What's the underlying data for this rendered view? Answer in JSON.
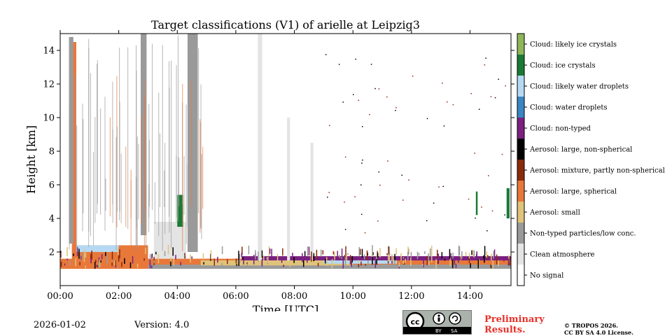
{
  "chart_data": {
    "type": "heatmap",
    "title": "Target classifications (V1) of arielle at Leipzig3",
    "xlabel": "Time [UTC]",
    "ylabel": "Height [km]",
    "xlim_hours": [
      0,
      15.4
    ],
    "ylim_km": [
      0,
      15
    ],
    "x_ticks": [
      {
        "value": 0,
        "label": "00:00"
      },
      {
        "value": 2,
        "label": "02:00"
      },
      {
        "value": 4,
        "label": "04:00"
      },
      {
        "value": 6,
        "label": "06:00"
      },
      {
        "value": 8,
        "label": "08:00"
      },
      {
        "value": 10,
        "label": "10:00"
      },
      {
        "value": 12,
        "label": "12:00"
      },
      {
        "value": 14,
        "label": "14:00"
      }
    ],
    "y_ticks": [
      {
        "value": 2,
        "label": "2"
      },
      {
        "value": 4,
        "label": "4"
      },
      {
        "value": 6,
        "label": "6"
      },
      {
        "value": 8,
        "label": "8"
      },
      {
        "value": 10,
        "label": "10"
      },
      {
        "value": 12,
        "label": "12"
      },
      {
        "value": 14,
        "label": "14"
      }
    ],
    "legend": [
      {
        "label": "Cloud: likely ice crystals",
        "color": "#8fb65a"
      },
      {
        "label": "Cloud: ice crystals",
        "color": "#1a7a35"
      },
      {
        "label": "Cloud: likely water droplets",
        "color": "#b5d9f3"
      },
      {
        "label": "Cloud: water droplets",
        "color": "#3a86c2"
      },
      {
        "label": "Cloud: non-typed",
        "color": "#7a2080"
      },
      {
        "label": "Aerosol: large, non-spherical",
        "color": "#000000"
      },
      {
        "label": "Aerosol: mixture, partly non-spherical",
        "color": "#8b2a0a"
      },
      {
        "label": "Aerosol: large, spherical",
        "color": "#e8783a"
      },
      {
        "label": "Aerosol: small",
        "color": "#e0c37a"
      },
      {
        "label": "Non-typed particles/low conc.",
        "color": "#9a9a9a"
      },
      {
        "label": "Clean atmosphere",
        "color": "#e4e4e4"
      },
      {
        "label": "No signal",
        "color": "#ffffff"
      }
    ],
    "layers": [
      {
        "class": "Aerosol: large, spherical",
        "x_start": 0.0,
        "x_end": 15.4,
        "y_bottom": 1.0,
        "y_top": 1.6
      },
      {
        "class": "Non-typed particles/low conc.",
        "x_start": 1.2,
        "x_end": 15.4,
        "y_bottom": 1.0,
        "y_top": 1.25
      },
      {
        "class": "Aerosol: small",
        "x_start": 4.8,
        "x_end": 10.0,
        "y_bottom": 1.2,
        "y_top": 1.5
      },
      {
        "class": "Cloud: likely water droplets",
        "x_start": 9.0,
        "x_end": 11.5,
        "y_bottom": 1.3,
        "y_top": 1.5
      },
      {
        "class": "Cloud: non-typed",
        "x_start": 6.2,
        "x_end": 15.4,
        "y_bottom": 1.5,
        "y_top": 1.75
      },
      {
        "class": "Aerosol: large, spherical",
        "x_start": 0.4,
        "x_end": 3.0,
        "y_bottom": 1.0,
        "y_top": 2.4
      },
      {
        "class": "Cloud: likely water droplets",
        "x_start": 0.4,
        "x_end": 2.0,
        "y_bottom": 2.0,
        "y_top": 2.4
      },
      {
        "class": "Clean atmosphere",
        "x_start": 3.2,
        "x_end": 4.3,
        "y_bottom": 1.6,
        "y_top": 3.8
      },
      {
        "class": "Aerosol: large, spherical",
        "x_start": 0.4,
        "x_end": 0.55,
        "y_bottom": 2.0,
        "y_top": 14.5
      },
      {
        "class": "Non-typed particles/low conc.",
        "x_start": 0.3,
        "x_end": 0.45,
        "y_bottom": 2.5,
        "y_top": 14.8
      },
      {
        "class": "Non-typed particles/low conc.",
        "x_start": 4.35,
        "x_end": 4.7,
        "y_bottom": 2.0,
        "y_top": 15.0
      },
      {
        "class": "Non-typed particles/low conc.",
        "x_start": 2.75,
        "x_end": 2.95,
        "y_bottom": 3.0,
        "y_top": 15.0
      },
      {
        "class": "Clean atmosphere",
        "x_start": 6.75,
        "x_end": 6.9,
        "y_bottom": 1.5,
        "y_top": 15.0
      },
      {
        "class": "Clean atmosphere",
        "x_start": 7.75,
        "x_end": 7.85,
        "y_bottom": 1.5,
        "y_top": 10.0
      },
      {
        "class": "Clean atmosphere",
        "x_start": 8.55,
        "x_end": 8.65,
        "y_bottom": 1.5,
        "y_top": 8.5
      },
      {
        "class": "Cloud: ice crystals",
        "x_start": 4.0,
        "x_end": 4.2,
        "y_bottom": 3.5,
        "y_top": 5.4
      },
      {
        "class": "Cloud: ice crystals",
        "x_start": 15.25,
        "x_end": 15.35,
        "y_bottom": 4.0,
        "y_top": 5.8
      },
      {
        "class": "Cloud: ice crystals",
        "x_start": 14.2,
        "x_end": 14.26,
        "y_bottom": 4.2,
        "y_top": 5.6
      }
    ]
  },
  "footer": {
    "date": "2026-01-02",
    "version": "Version: 4.0",
    "preliminary_line1": "Preliminary",
    "preliminary_line2": "Results.",
    "copyright_line1": "© TROPOS 2026.",
    "copyright_line2": "CC BY SA 4.0 License.",
    "cc_badge_by": "BY",
    "cc_badge_sa": "SA"
  }
}
